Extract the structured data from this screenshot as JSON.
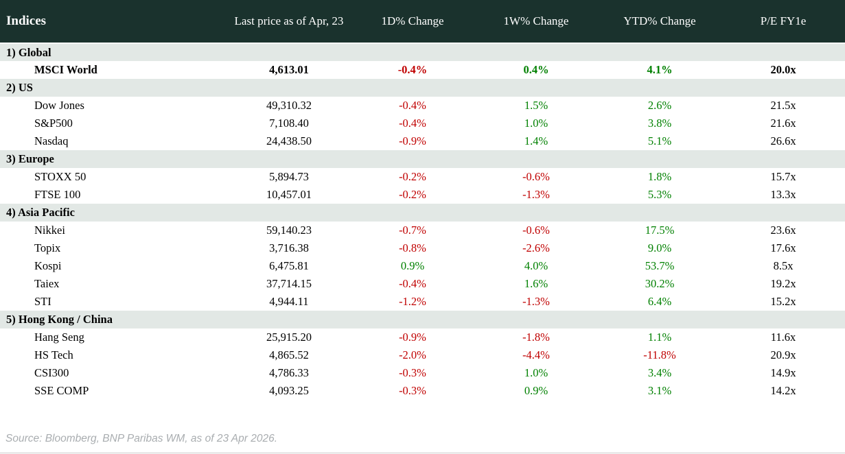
{
  "colors": {
    "header_bg": "#1a322d",
    "section_bg": "#e2e8e5",
    "negative": "#c00000",
    "positive": "#008000",
    "source_text": "#a9adb0",
    "divider": "#cccccc"
  },
  "table": {
    "columns": [
      "Indices",
      "Last price as of Apr, 23",
      "1D% Change",
      "1W% Change",
      "YTD% Change",
      "P/E FY1e"
    ],
    "column_keys": [
      "index-name",
      "last-price-cell",
      "change-1d-cell",
      "change-1w-cell",
      "change-ytd-cell",
      "pe-fy1e-cell"
    ],
    "sections": [
      {
        "label": "1) Global",
        "rows": [
          {
            "name": "MSCI World",
            "bold": true,
            "values": [
              "4,613.01",
              "-0.4%",
              "0.4%",
              "4.1%",
              "20.0x"
            ]
          }
        ]
      },
      {
        "label": "2) US",
        "rows": [
          {
            "name": "Dow Jones",
            "bold": false,
            "values": [
              "49,310.32",
              "-0.4%",
              "1.5%",
              "2.6%",
              "21.5x"
            ]
          },
          {
            "name": "S&P500",
            "bold": false,
            "values": [
              "7,108.40",
              "-0.4%",
              "1.0%",
              "3.8%",
              "21.6x"
            ]
          },
          {
            "name": "Nasdaq",
            "bold": false,
            "values": [
              "24,438.50",
              "-0.9%",
              "1.4%",
              "5.1%",
              "26.6x"
            ]
          }
        ]
      },
      {
        "label": "3) Europe",
        "rows": [
          {
            "name": "STOXX 50",
            "bold": false,
            "values": [
              "5,894.73",
              "-0.2%",
              "-0.6%",
              "1.8%",
              "15.7x"
            ]
          },
          {
            "name": "FTSE 100",
            "bold": false,
            "values": [
              "10,457.01",
              "-0.2%",
              "-1.3%",
              "5.3%",
              "13.3x"
            ]
          }
        ]
      },
      {
        "label": "4) Asia Pacific",
        "rows": [
          {
            "name": "Nikkei",
            "bold": false,
            "values": [
              "59,140.23",
              "-0.7%",
              "-0.6%",
              "17.5%",
              "23.6x"
            ]
          },
          {
            "name": "Topix",
            "bold": false,
            "values": [
              "3,716.38",
              "-0.8%",
              "-2.6%",
              "9.0%",
              "17.6x"
            ]
          },
          {
            "name": "Kospi",
            "bold": false,
            "values": [
              "6,475.81",
              "0.9%",
              "4.0%",
              "53.7%",
              "8.5x"
            ]
          },
          {
            "name": "Taiex",
            "bold": false,
            "values": [
              "37,714.15",
              "-0.4%",
              "1.6%",
              "30.2%",
              "19.2x"
            ]
          },
          {
            "name": "STI",
            "bold": false,
            "values": [
              "4,944.11",
              "-1.2%",
              "-1.3%",
              "6.4%",
              "15.2x"
            ]
          }
        ]
      },
      {
        "label": "5) Hong Kong / China",
        "rows": [
          {
            "name": "Hang Seng",
            "bold": false,
            "values": [
              "25,915.20",
              "-0.9%",
              "-1.8%",
              "1.1%",
              "11.6x"
            ]
          },
          {
            "name": "HS Tech",
            "bold": false,
            "values": [
              "4,865.52",
              "-2.0%",
              "-4.4%",
              "-11.8%",
              "20.9x"
            ]
          },
          {
            "name": "CSI300",
            "bold": false,
            "values": [
              "4,786.33",
              "-0.3%",
              "1.0%",
              "3.4%",
              "14.9x"
            ]
          },
          {
            "name": "SSE COMP",
            "bold": false,
            "values": [
              "4,093.25",
              "-0.3%",
              "0.9%",
              "3.1%",
              "14.2x"
            ]
          }
        ]
      }
    ]
  },
  "footer": {
    "source": "Source: Bloomberg, BNP Paribas WM, as of 23 Apr 2026."
  }
}
